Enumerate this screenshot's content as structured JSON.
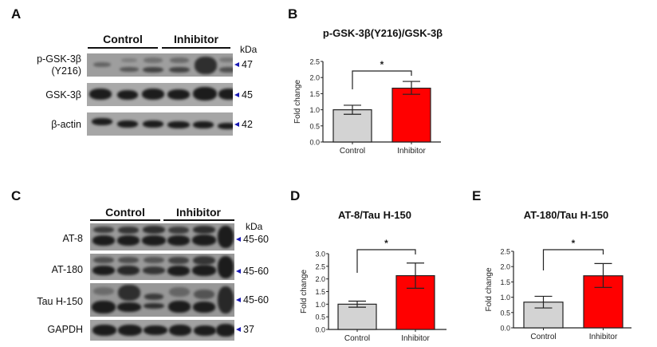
{
  "panels": {
    "A": {
      "letter": "A",
      "groups": [
        "Control",
        "Inhibitor"
      ],
      "kda_label": "kDa",
      "rows": [
        {
          "label_line1": "p-GSK-3β",
          "label_line2": "(Y216)",
          "mw": "47"
        },
        {
          "label_line1": "GSK-3β",
          "mw": "45"
        },
        {
          "label_line1": "β-actin",
          "mw": "42"
        }
      ]
    },
    "B": {
      "letter": "B",
      "title": "p-GSK-3β(Y216)/GSK-3β"
    },
    "C": {
      "letter": "C",
      "groups": [
        "Control",
        "Inhibitor"
      ],
      "kda_label": "kDa",
      "rows": [
        {
          "label": "AT-8",
          "mw": "45-60"
        },
        {
          "label": "AT-180",
          "mw": "45-60"
        },
        {
          "label": "Tau H-150",
          "mw": "45-60"
        },
        {
          "label": "GAPDH",
          "mw": "37"
        }
      ]
    },
    "D": {
      "letter": "D",
      "title": "AT-8/Tau H-150"
    },
    "E": {
      "letter": "E",
      "title": "AT-180/Tau H-150"
    }
  },
  "colors": {
    "control": "#d3d3d3",
    "inhibitor": "#ff0000",
    "arrow": "#1a1ab4"
  },
  "chart_data": [
    {
      "panel": "B",
      "type": "bar",
      "title": "p-GSK-3β(Y216)/GSK-3β",
      "categories": [
        "Control",
        "Inhibitor"
      ],
      "values": [
        1.0,
        1.67
      ],
      "error_low": [
        0.86,
        1.48
      ],
      "error_high": [
        1.14,
        1.88
      ],
      "xlabel": "",
      "ylabel": "Fold change",
      "ylim": [
        0,
        2.5
      ],
      "yticks": [
        "0.0",
        "0.5",
        "1.0",
        "1.5",
        "2.0",
        "2.5"
      ],
      "significance": "*",
      "grid": false
    },
    {
      "panel": "D",
      "type": "bar",
      "title": "AT-8/Tau H-150",
      "categories": [
        "Control",
        "Inhibitor"
      ],
      "values": [
        1.0,
        2.13
      ],
      "error_low": [
        0.88,
        1.63
      ],
      "error_high": [
        1.12,
        2.63
      ],
      "xlabel": "",
      "ylabel": "Fold change",
      "ylim": [
        0,
        3.0
      ],
      "yticks": [
        "0.0",
        "0.5",
        "1.0",
        "1.5",
        "2.0",
        "2.5",
        "3.0"
      ],
      "significance": "*",
      "grid": false
    },
    {
      "panel": "E",
      "type": "bar",
      "title": "AT-180/Tau H-150",
      "categories": [
        "Control",
        "Inhibitor"
      ],
      "values": [
        0.84,
        1.7
      ],
      "error_low": [
        0.65,
        1.32
      ],
      "error_high": [
        1.03,
        2.1
      ],
      "xlabel": "",
      "ylabel": "Fold change",
      "ylim": [
        0,
        2.5
      ],
      "yticks": [
        "0.0",
        "0.5",
        "1.0",
        "1.5",
        "2.0",
        "2.5"
      ],
      "significance": "*",
      "grid": false
    }
  ]
}
